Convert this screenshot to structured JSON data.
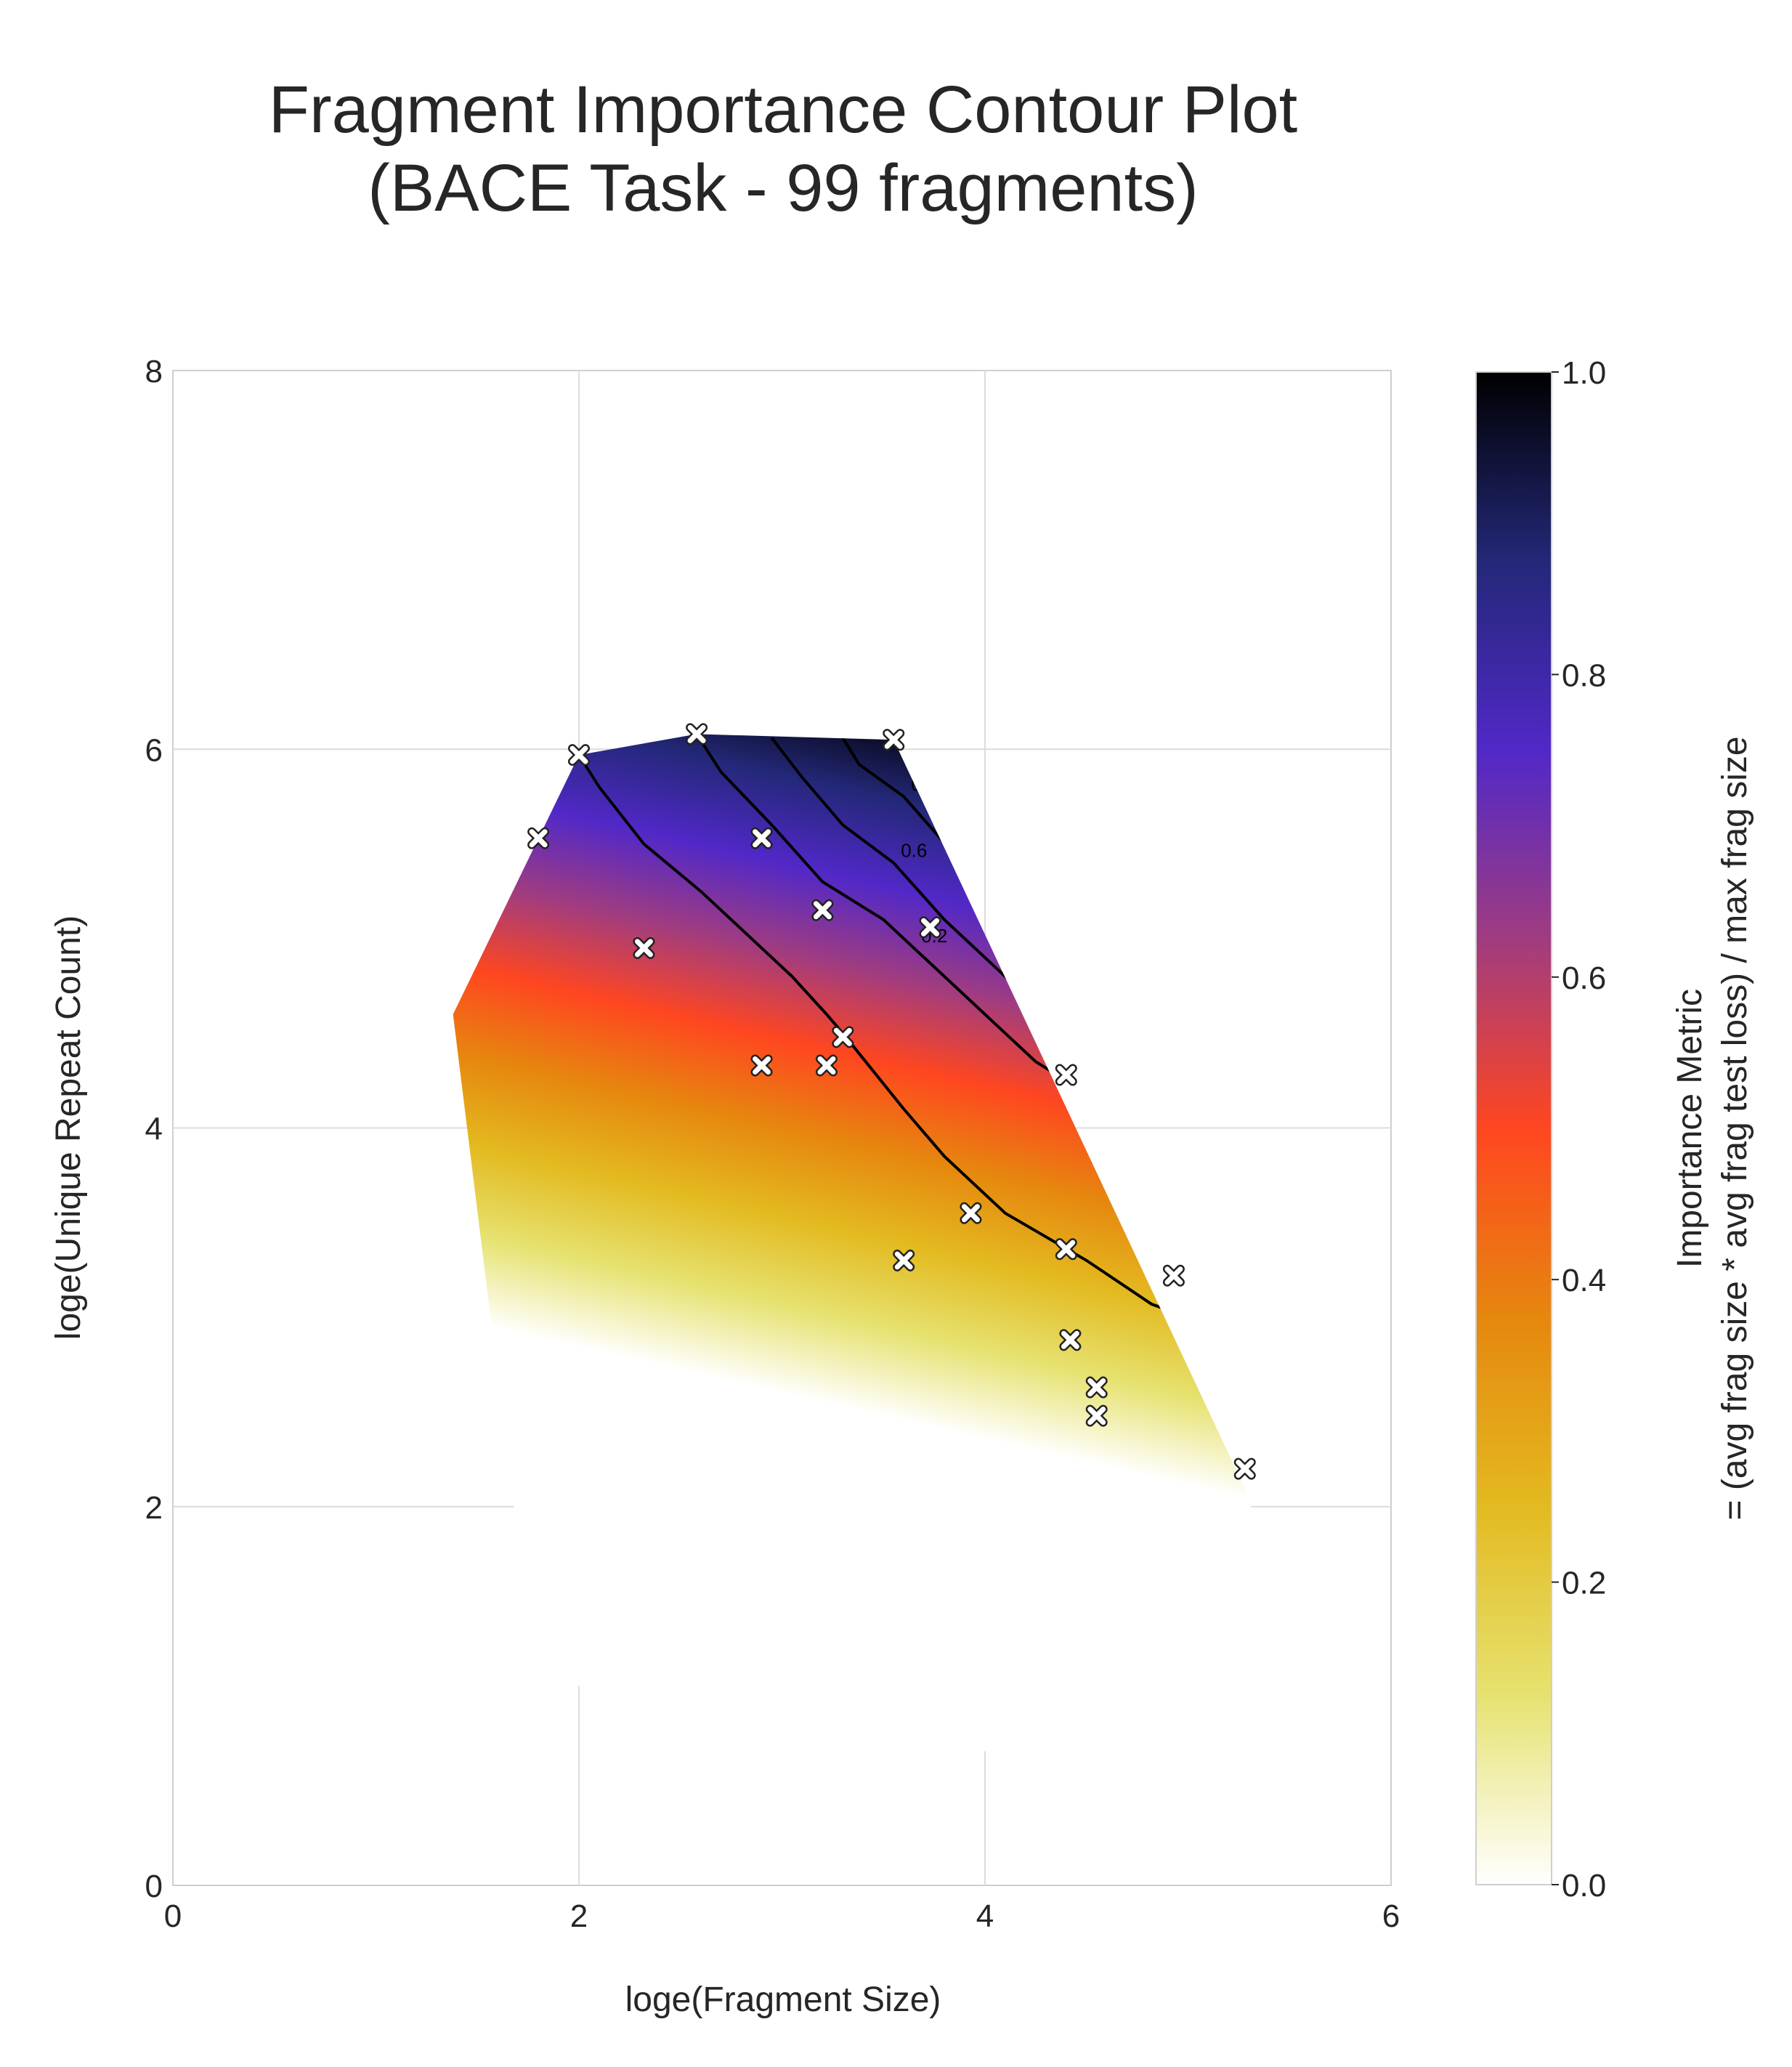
{
  "chart_data": {
    "type": "contour",
    "title": [
      "Fragment Importance Contour Plot",
      "(BACE Task - 99 fragments)"
    ],
    "xlabel": "loge(Fragment Size)",
    "ylabel": "loge(Unique Repeat Count)",
    "xlim": [
      0,
      6
    ],
    "ylim": [
      0,
      8
    ],
    "xticks": [
      "0",
      "2",
      "4",
      "6"
    ],
    "yticks": [
      "0",
      "2",
      "4",
      "6",
      "8"
    ],
    "grid": true,
    "colorbar": {
      "label": [
        "Importance Metric",
        "= (avg frag size * avg frag test loss) / max frag size"
      ],
      "range": [
        0,
        1
      ],
      "ticks": [
        "0.0",
        "0.2",
        "0.4",
        "0.6",
        "0.8",
        "1.0"
      ],
      "colormap": "CMRmap_r",
      "colors": [
        "#ffffff",
        "#e6e270",
        "#e3ba20",
        "#e6870e",
        "#ff4620",
        "#a03c80",
        "#5128c8",
        "#232878",
        "#000000"
      ]
    },
    "hull": [
      [
        1.38,
        4.6
      ],
      [
        2.0,
        5.97
      ],
      [
        2.58,
        6.08
      ],
      [
        3.55,
        6.05
      ],
      [
        5.3,
        2.05
      ],
      [
        5.6,
        0.7
      ],
      [
        4.05,
        0.7
      ],
      [
        2.0,
        1.05
      ],
      [
        1.68,
        2.0
      ]
    ],
    "contour_levels": [
      {
        "level": "",
        "points": [
          [
            2.0,
            5.97
          ],
          [
            2.1,
            5.8
          ],
          [
            2.32,
            5.5
          ],
          [
            2.6,
            5.25
          ],
          [
            2.8,
            5.05
          ],
          [
            3.05,
            4.8
          ],
          [
            3.22,
            4.6
          ],
          [
            3.3,
            4.5
          ],
          [
            3.6,
            4.1
          ],
          [
            3.8,
            3.85
          ],
          [
            4.1,
            3.55
          ],
          [
            4.5,
            3.3
          ],
          [
            4.82,
            3.07
          ],
          [
            5.0,
            3.0
          ]
        ]
      },
      {
        "level": "0.2",
        "points": [
          [
            2.58,
            6.08
          ],
          [
            2.7,
            5.88
          ],
          [
            2.95,
            5.6
          ],
          [
            3.2,
            5.3
          ],
          [
            3.5,
            5.1
          ],
          [
            3.65,
            4.95
          ],
          [
            3.85,
            4.75
          ],
          [
            4.05,
            4.55
          ],
          [
            4.25,
            4.35
          ],
          [
            4.4,
            4.25
          ],
          [
            4.62,
            3.85
          ]
        ]
      },
      {
        "level": "0.6",
        "points": [
          [
            2.95,
            6.06
          ],
          [
            3.1,
            5.85
          ],
          [
            3.3,
            5.6
          ],
          [
            3.55,
            5.4
          ],
          [
            3.8,
            5.1
          ],
          [
            4.1,
            4.8
          ],
          [
            4.35,
            4.5
          ]
        ]
      },
      {
        "level": "0.8",
        "points": [
          [
            3.3,
            6.06
          ],
          [
            3.38,
            5.92
          ],
          [
            3.6,
            5.75
          ],
          [
            3.78,
            5.53
          ],
          [
            3.93,
            5.35
          ]
        ]
      }
    ],
    "points": [
      [
        1.8,
        5.53
      ],
      [
        2.0,
        5.97
      ],
      [
        2.58,
        6.08
      ],
      [
        3.55,
        6.05
      ],
      [
        2.32,
        4.95
      ],
      [
        2.9,
        5.53
      ],
      [
        3.2,
        5.15
      ],
      [
        3.73,
        5.06
      ],
      [
        3.3,
        4.48
      ],
      [
        2.9,
        4.33
      ],
      [
        3.22,
        4.33
      ],
      [
        4.4,
        4.28
      ],
      [
        3.93,
        3.55
      ],
      [
        3.6,
        3.3
      ],
      [
        4.4,
        3.36
      ],
      [
        4.93,
        3.22
      ],
      [
        4.42,
        2.88
      ],
      [
        4.55,
        2.63
      ],
      [
        4.55,
        2.48
      ],
      [
        5.28,
        2.2
      ]
    ]
  }
}
